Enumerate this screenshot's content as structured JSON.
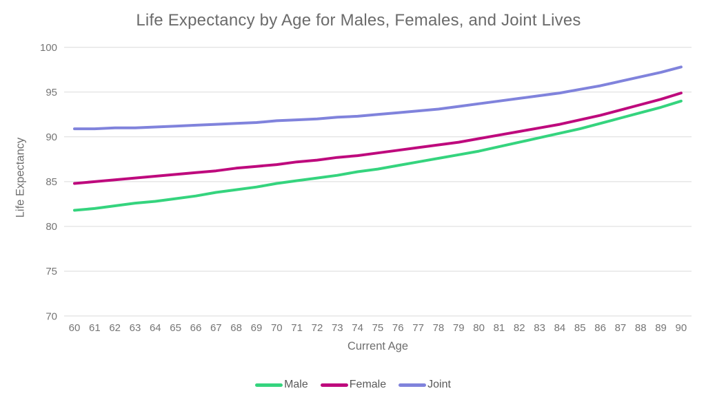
{
  "chart_data": {
    "type": "line",
    "title": "Life Expectancy by Age for Males, Females, and Joint Lives",
    "xlabel": "Current Age",
    "ylabel": "Life Expectancy",
    "x": [
      60,
      61,
      62,
      63,
      64,
      65,
      66,
      67,
      68,
      69,
      70,
      71,
      72,
      73,
      74,
      75,
      76,
      77,
      78,
      79,
      80,
      81,
      82,
      83,
      84,
      85,
      86,
      87,
      88,
      89,
      90
    ],
    "series": [
      {
        "name": "Male",
        "color": "#35d47e",
        "values": [
          81.8,
          82.0,
          82.3,
          82.6,
          82.8,
          83.1,
          83.4,
          83.8,
          84.1,
          84.4,
          84.8,
          85.1,
          85.4,
          85.7,
          86.1,
          86.4,
          86.8,
          87.2,
          87.6,
          88.0,
          88.4,
          88.9,
          89.4,
          89.9,
          90.4,
          90.9,
          91.5,
          92.1,
          92.7,
          93.3,
          94.0
        ]
      },
      {
        "name": "Female",
        "color": "#be0a7d",
        "values": [
          84.8,
          85.0,
          85.2,
          85.4,
          85.6,
          85.8,
          86.0,
          86.2,
          86.5,
          86.7,
          86.9,
          87.2,
          87.4,
          87.7,
          87.9,
          88.2,
          88.5,
          88.8,
          89.1,
          89.4,
          89.8,
          90.2,
          90.6,
          91.0,
          91.4,
          91.9,
          92.4,
          93.0,
          93.6,
          94.2,
          94.9
        ]
      },
      {
        "name": "Joint",
        "color": "#8083dc",
        "values": [
          90.9,
          90.9,
          91.0,
          91.0,
          91.1,
          91.2,
          91.3,
          91.4,
          91.5,
          91.6,
          91.8,
          91.9,
          92.0,
          92.2,
          92.3,
          92.5,
          92.7,
          92.9,
          93.1,
          93.4,
          93.7,
          94.0,
          94.3,
          94.6,
          94.9,
          95.3,
          95.7,
          96.2,
          96.7,
          97.2,
          97.8
        ]
      }
    ],
    "ylim": [
      70,
      100
    ],
    "yticks": [
      70,
      75,
      80,
      85,
      90,
      95,
      100
    ],
    "grid": true,
    "legend_position": "bottom"
  },
  "colors": {
    "gridline": "#dadada",
    "tick_text": "#757575",
    "title_text": "#6b6b6b",
    "axis_label_text": "#6f6f6f",
    "legend_text": "#595959"
  }
}
